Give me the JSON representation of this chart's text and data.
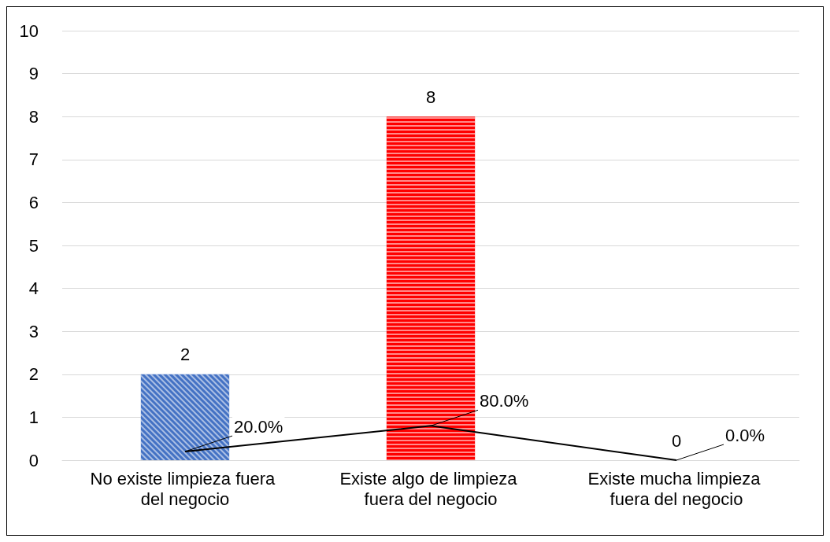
{
  "chart_data": {
    "type": "bar",
    "categories": [
      "No existe limpieza fuera del negocio",
      "Existe algo de limpieza fuera del negocio",
      "Existe mucha limpieza fuera del negocio"
    ],
    "series": [
      {
        "colors": [
          "#4472c4",
          "#ff0000",
          "#ff0000"
        ],
        "values": [
          2,
          8,
          0
        ],
        "data_labels": true
      },
      {
        "type": "line",
        "color": "#000000",
        "values": [
          0.2,
          0.8,
          0
        ],
        "value_labels": [
          "20.0%",
          "80.0%",
          "0.0%"
        ]
      }
    ],
    "ylim": [
      0,
      10
    ],
    "yticks": [
      0,
      1,
      2,
      3,
      4,
      5,
      6,
      7,
      8,
      9,
      10
    ],
    "grid": "y"
  }
}
